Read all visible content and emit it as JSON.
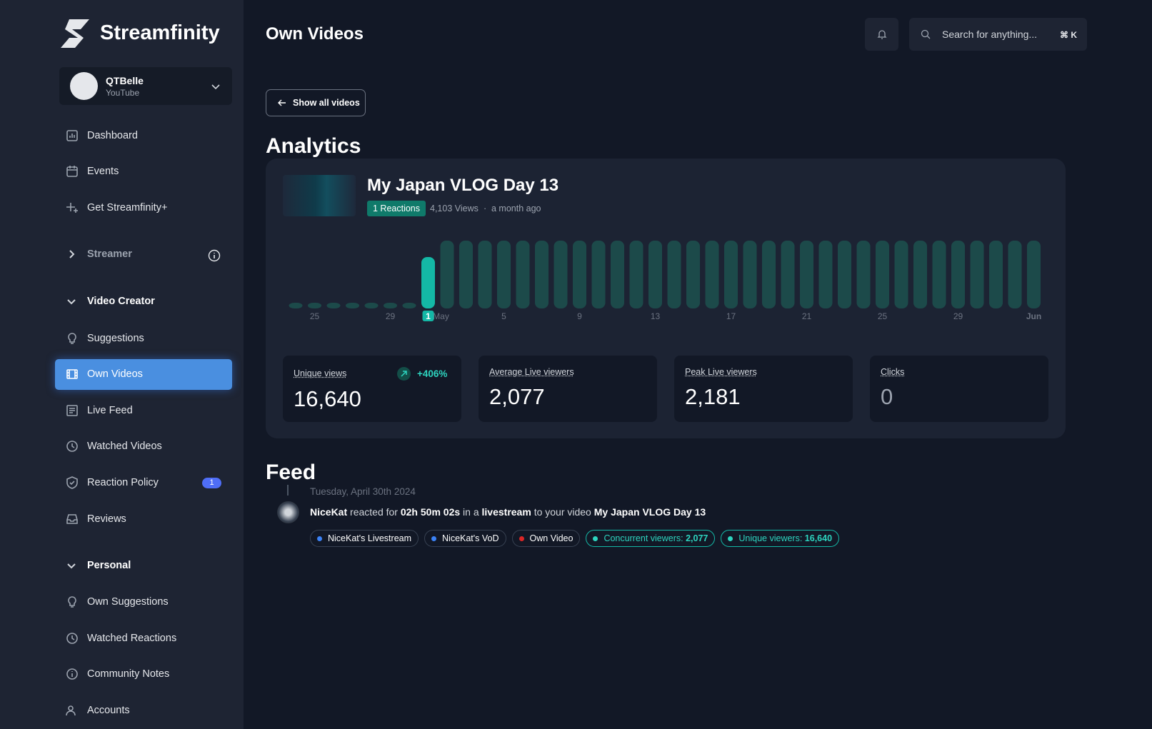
{
  "brand": "Streamfinity",
  "account": {
    "name": "QTBelle",
    "platform": "YouTube"
  },
  "nav": {
    "top": [
      "Dashboard",
      "Events",
      "Get Streamfinity+"
    ],
    "sections": [
      {
        "title": "Streamer",
        "items": []
      },
      {
        "title": "Video Creator",
        "items": [
          {
            "label": "Suggestions"
          },
          {
            "label": "Own Videos",
            "active": true
          },
          {
            "label": "Live Feed"
          },
          {
            "label": "Watched Videos"
          },
          {
            "label": "Reaction Policy",
            "badge": "1"
          },
          {
            "label": "Reviews"
          }
        ]
      },
      {
        "title": "Personal",
        "items": [
          {
            "label": "Own Suggestions"
          },
          {
            "label": "Watched Reactions"
          },
          {
            "label": "Community Notes"
          },
          {
            "label": "Accounts"
          }
        ]
      }
    ]
  },
  "header": {
    "title": "Own Videos",
    "search_placeholder": "Search for anything...",
    "shortcut": "⌘ K"
  },
  "back_button": "Show all videos",
  "analytics": {
    "heading": "Analytics",
    "video": {
      "title": "My Japan VLOG Day 13",
      "reactions": "1 Reactions",
      "views": "4,103 Views",
      "age": "a month ago"
    },
    "timeline": {
      "categories": [
        null,
        "25",
        null,
        null,
        null,
        "29",
        null,
        "May",
        null,
        null,
        null,
        "5",
        null,
        null,
        null,
        "9",
        null,
        null,
        null,
        "13",
        null,
        null,
        null,
        "17",
        null,
        null,
        null,
        "21",
        null,
        null,
        null,
        "25",
        null,
        null,
        null,
        "29",
        null,
        null,
        null,
        "Jun"
      ],
      "values": [
        0,
        0,
        0,
        0,
        0,
        0,
        0,
        72,
        95,
        95,
        95,
        95,
        95,
        95,
        95,
        95,
        95,
        95,
        95,
        95,
        95,
        95,
        95,
        95,
        95,
        95,
        95,
        95,
        95,
        95,
        95,
        95,
        95,
        95,
        95,
        95,
        95,
        95,
        95,
        95
      ],
      "ylim": [
        0,
        100
      ],
      "highlight": "May",
      "highlight_label": "1",
      "color": "#1c4a4a",
      "highlight_color": "#14b8a6"
    },
    "stats": [
      {
        "label": "Unique views",
        "value": "16,640",
        "change": "+406%"
      },
      {
        "label": "Average Live viewers",
        "value": "2,077"
      },
      {
        "label": "Peak Live viewers",
        "value": "2,181"
      },
      {
        "label": "Clicks",
        "value": "0"
      }
    ]
  },
  "feed": {
    "heading": "Feed",
    "date": "Tuesday, April 30th 2024",
    "entry": {
      "user": "NiceKat",
      "text1": "reacted for",
      "duration": "02h 50m 02s",
      "text2": "in a",
      "kind": "livestream",
      "text3": "to your video",
      "video": "My Japan VLOG Day 13",
      "tags": [
        {
          "label": "NiceKat's Livestream",
          "color": "#3b82f6"
        },
        {
          "label": "NiceKat's VoD",
          "color": "#3b82f6"
        },
        {
          "label": "Own Video",
          "color": "#dc2626"
        }
      ],
      "metrics": [
        {
          "label": "Concurrent viewers:",
          "value": "2,077"
        },
        {
          "label": "Unique viewers:",
          "value": "16,640"
        }
      ]
    }
  }
}
